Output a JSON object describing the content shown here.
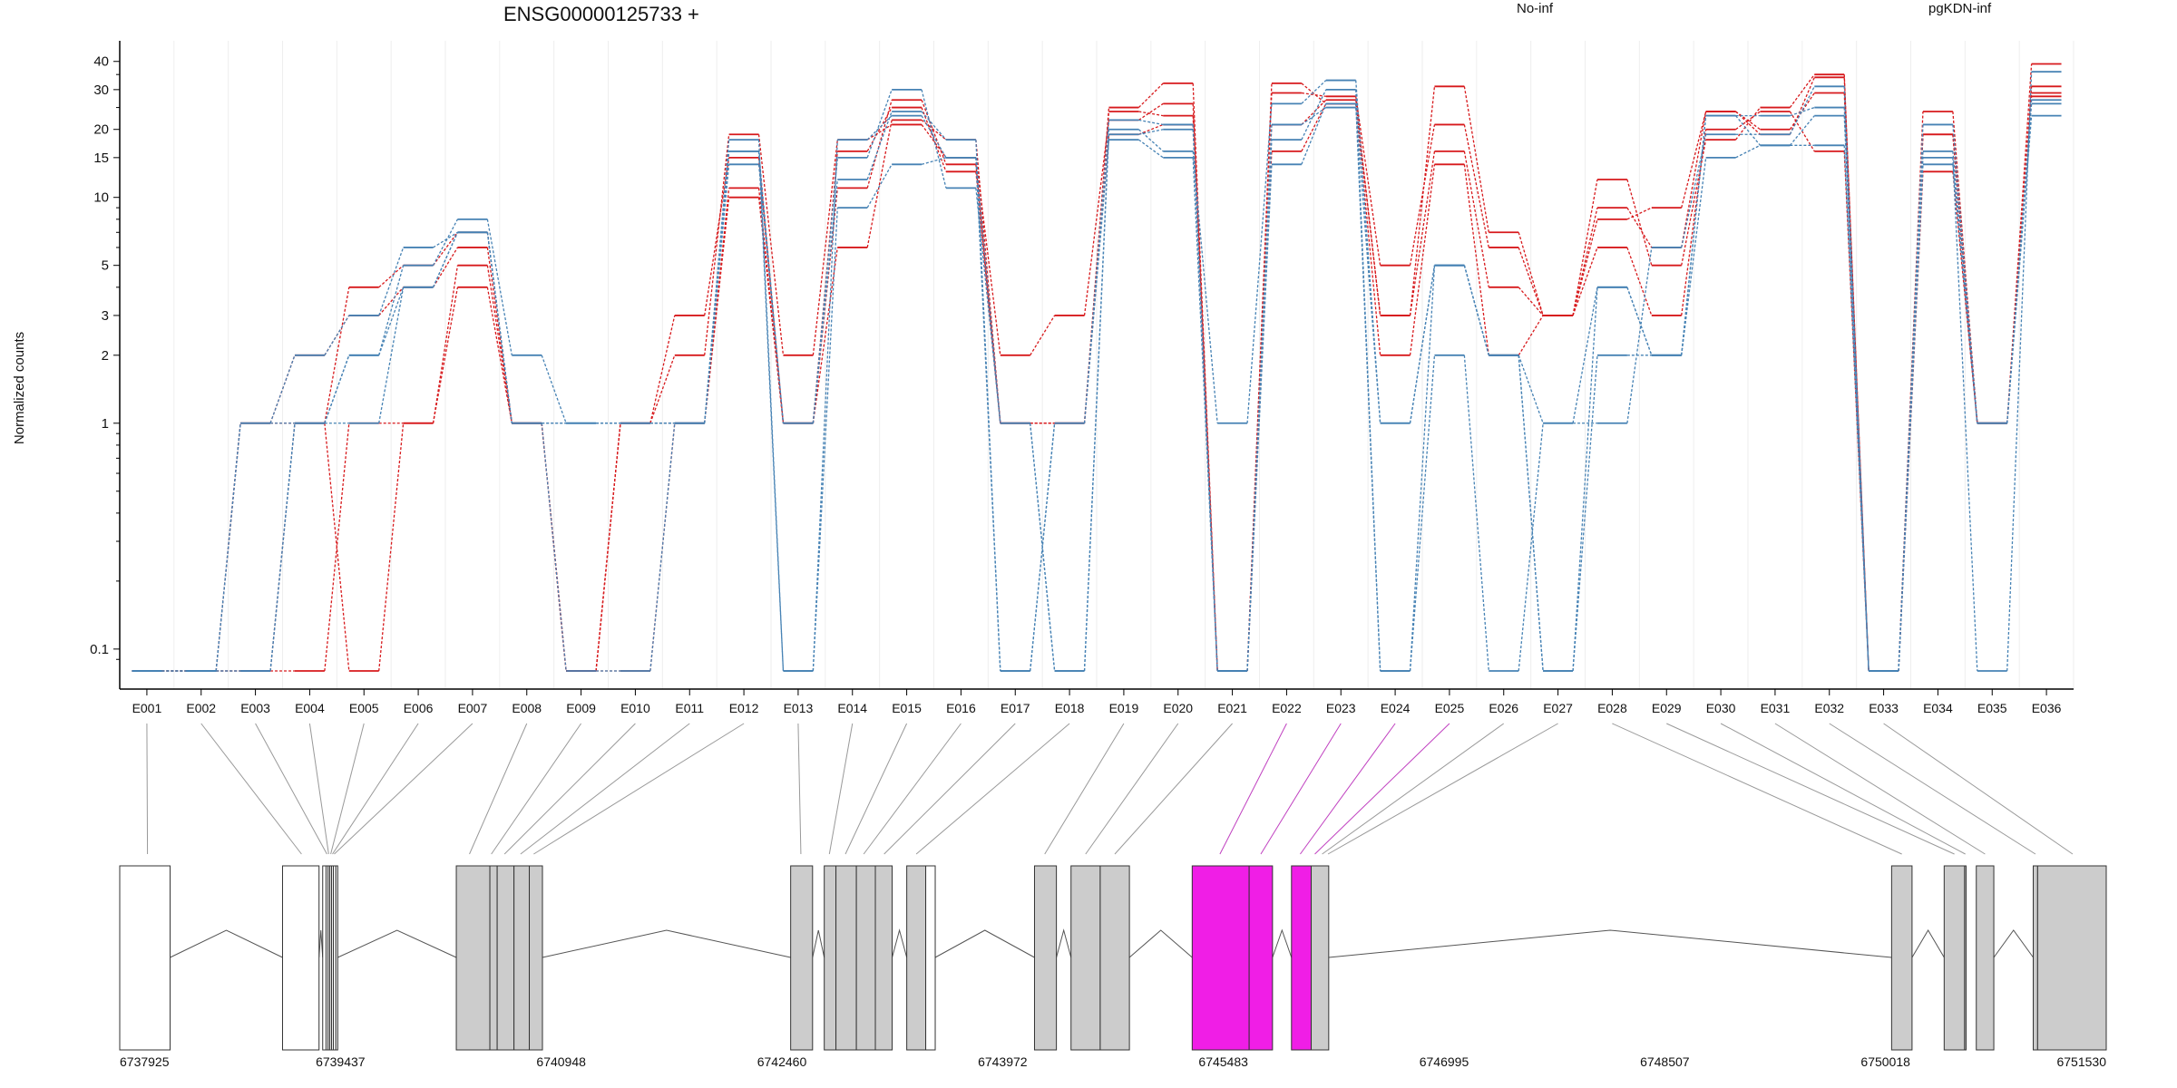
{
  "chart_data": {
    "type": "line",
    "title": "ENSG00000125733 +",
    "ylabel": "Normalized counts",
    "xlabel": "",
    "y_scale": "log",
    "ylim": [
      0.08,
      45
    ],
    "y_ticks": [
      0.1,
      1,
      2,
      3,
      5,
      10,
      15,
      20,
      30,
      40
    ],
    "y_tick_labels": [
      "0.1",
      "1",
      "2",
      "3",
      "5",
      "10",
      "15",
      "20",
      "30",
      "40"
    ],
    "grid": "vertical",
    "legend": [
      {
        "label": "No-inf",
        "color": "#d7191c",
        "placement": "top-center-right"
      },
      {
        "label": "pgKDN-inf",
        "color": "#4682b4",
        "placement": "top-right"
      }
    ],
    "categories": [
      "E001",
      "E002",
      "E003",
      "E004",
      "E005",
      "E006",
      "E007",
      "E008",
      "E009",
      "E010",
      "E011",
      "E012",
      "E013",
      "E014",
      "E015",
      "E016",
      "E017",
      "E018",
      "E019",
      "E020",
      "E021",
      "E022",
      "E023",
      "E024",
      "E025",
      "E026",
      "E027",
      "E028",
      "E029",
      "E030",
      "E031",
      "E032",
      "E033",
      "E034",
      "E035",
      "E036"
    ],
    "zero_value": 0.08,
    "series": [
      {
        "group": "No-inf",
        "color": "#d7191c",
        "values": [
          0.08,
          0.08,
          1,
          1,
          0.08,
          1,
          4,
          1,
          0.08,
          1,
          1,
          11,
          1,
          6,
          22,
          18,
          1,
          1,
          19,
          21,
          0.08,
          21,
          27,
          3,
          16,
          4,
          3,
          9,
          6,
          24,
          20,
          29,
          0.08,
          19,
          1,
          28
        ]
      },
      {
        "group": "No-inf",
        "color": "#d7191c",
        "values": [
          0.08,
          0.08,
          1,
          2,
          3,
          4,
          6,
          1,
          0.08,
          1,
          2,
          19,
          2,
          18,
          21,
          15,
          2,
          3,
          22,
          26,
          0.08,
          29,
          28,
          5,
          21,
          6,
          3,
          12,
          5,
          18,
          25,
          35,
          0.08,
          24,
          1,
          31
        ]
      },
      {
        "group": "No-inf",
        "color": "#d7191c",
        "values": [
          0.08,
          0.08,
          0.08,
          1,
          4,
          5,
          7,
          1,
          0.08,
          1,
          3,
          15,
          1,
          11,
          27,
          14,
          1,
          1,
          25,
          32,
          0.08,
          32,
          26,
          3,
          31,
          7,
          3,
          8,
          9,
          24,
          19,
          34,
          0.08,
          19,
          1,
          39
        ]
      },
      {
        "group": "No-inf",
        "color": "#d7191c",
        "values": [
          0.08,
          0.08,
          0.08,
          0.08,
          1,
          1,
          5,
          1,
          0.08,
          0.08,
          1,
          10,
          1,
          16,
          25,
          13,
          1,
          1,
          24,
          23,
          0.08,
          16,
          26,
          2,
          14,
          2,
          3,
          6,
          3,
          20,
          24,
          16,
          0.08,
          13,
          1,
          29
        ]
      },
      {
        "group": "pgKDN-inf",
        "color": "#4682b4",
        "values": [
          0.08,
          0.08,
          1,
          1,
          1,
          4,
          7,
          1,
          1,
          1,
          1,
          16,
          1,
          15,
          30,
          11,
          1,
          0.08,
          20,
          16,
          1,
          26,
          33,
          1,
          5,
          2,
          1,
          4,
          2,
          23,
          17,
          23,
          0.08,
          21,
          1,
          23
        ]
      },
      {
        "group": "pgKDN-inf",
        "color": "#4682b4",
        "values": [
          0.08,
          0.08,
          0.08,
          1,
          2,
          5,
          8,
          2,
          1,
          1,
          1,
          14,
          1,
          12,
          24,
          18,
          0.08,
          1,
          22,
          21,
          0.08,
          18,
          30,
          0.08,
          2,
          0.08,
          1,
          1,
          6,
          19,
          19,
          31,
          0.08,
          14,
          1,
          26
        ]
      },
      {
        "group": "pgKDN-inf",
        "color": "#4682b4",
        "values": [
          0.08,
          0.08,
          1,
          2,
          3,
          6,
          7,
          1,
          0.08,
          0.08,
          1,
          16,
          0.08,
          18,
          23,
          15,
          0.08,
          1,
          18,
          15,
          0.08,
          14,
          26,
          0.08,
          5,
          2,
          0.08,
          4,
          2,
          15,
          17,
          17,
          0.08,
          16,
          1,
          27
        ]
      },
      {
        "group": "pgKDN-inf",
        "color": "#4682b4",
        "values": [
          0.08,
          0.08,
          0.08,
          1,
          2,
          4,
          7,
          1,
          1,
          1,
          1,
          18,
          0.08,
          9,
          14,
          15,
          1,
          0.08,
          19,
          20,
          0.08,
          21,
          25,
          1,
          5,
          2,
          0.08,
          2,
          2,
          23,
          23,
          25,
          0.08,
          15,
          0.08,
          36
        ]
      }
    ],
    "gene_model": {
      "coord_labels": [
        "6737925",
        "6739437",
        "6740948",
        "6742460",
        "6743972",
        "6745483",
        "6746995",
        "6748507",
        "6750018",
        "6751530"
      ],
      "coord_range": [
        6737925,
        6751530
      ],
      "exon_fill": "#cccccc",
      "highlight_fill": "#f01ee6",
      "exons": [
        {
          "s": 6737925,
          "e": 6738270,
          "fill": "white"
        },
        {
          "s": 6739040,
          "e": 6739290,
          "fill": "white"
        },
        {
          "s": 6739315,
          "e": 6739338,
          "fill": "white"
        },
        {
          "s": 6739338,
          "e": 6739352,
          "fill": "white"
        },
        {
          "s": 6739352,
          "e": 6739364,
          "fill": "white"
        },
        {
          "s": 6739364,
          "e": 6739376,
          "fill": "white"
        },
        {
          "s": 6739376,
          "e": 6739388,
          "fill": "white"
        },
        {
          "s": 6739388,
          "e": 6739405,
          "fill": "white"
        },
        {
          "s": 6739405,
          "e": 6739418,
          "fill": "white"
        },
        {
          "s": 6740230,
          "e": 6740460,
          "fill": "gray"
        },
        {
          "s": 6740460,
          "e": 6740510,
          "fill": "gray"
        },
        {
          "s": 6740510,
          "e": 6740625,
          "fill": "gray"
        },
        {
          "s": 6740625,
          "e": 6740730,
          "fill": "gray"
        },
        {
          "s": 6740730,
          "e": 6740820,
          "fill": "gray"
        },
        {
          "s": 6742520,
          "e": 6742670,
          "fill": "gray"
        },
        {
          "s": 6742750,
          "e": 6742830,
          "fill": "gray"
        },
        {
          "s": 6742830,
          "e": 6742970,
          "fill": "gray"
        },
        {
          "s": 6742970,
          "e": 6743100,
          "fill": "gray"
        },
        {
          "s": 6743100,
          "e": 6743215,
          "fill": "gray"
        },
        {
          "s": 6743315,
          "e": 6743445,
          "fill": "gray"
        },
        {
          "s": 6743445,
          "e": 6743510,
          "fill": "white"
        },
        {
          "s": 6744190,
          "e": 6744340,
          "fill": "gray"
        },
        {
          "s": 6744440,
          "e": 6744640,
          "fill": "gray"
        },
        {
          "s": 6744640,
          "e": 6744840,
          "fill": "gray"
        },
        {
          "s": 6745270,
          "e": 6745660,
          "fill": "highlight"
        },
        {
          "s": 6745660,
          "e": 6745820,
          "fill": "highlight"
        },
        {
          "s": 6745950,
          "e": 6746085,
          "fill": "highlight"
        },
        {
          "s": 6746085,
          "e": 6746205,
          "fill": "gray"
        },
        {
          "s": 6750060,
          "e": 6750200,
          "fill": "gray"
        },
        {
          "s": 6750420,
          "e": 6750560,
          "fill": "gray"
        },
        {
          "s": 6750560,
          "e": 6750570,
          "fill": "gray"
        },
        {
          "s": 6750640,
          "e": 6750760,
          "fill": "gray"
        },
        {
          "s": 6751030,
          "e": 6751060,
          "fill": "gray"
        },
        {
          "s": 6751060,
          "e": 6751530,
          "fill": "gray"
        }
      ],
      "introns": [
        [
          6738270,
          6739040
        ],
        [
          6739290,
          6739315
        ],
        [
          6739418,
          6740230
        ],
        [
          6740820,
          6742520
        ],
        [
          6742670,
          6742750
        ],
        [
          6743215,
          6743315
        ],
        [
          6743510,
          6744190
        ],
        [
          6744340,
          6744440
        ],
        [
          6744840,
          6745270
        ],
        [
          6745820,
          6745950
        ],
        [
          6746205,
          6750060
        ],
        [
          6750200,
          6750420
        ],
        [
          6750760,
          6751030
        ]
      ],
      "exon_links": [
        6738115,
        6739170,
        6739344,
        6739356,
        6739370,
        6739382,
        6739394,
        6740320,
        6740470,
        6740560,
        6740670,
        6740760,
        6742590,
        6742785,
        6742895,
        6743020,
        6743160,
        6743380,
        6744260,
        6744540,
        6744740,
        6745460,
        6745740,
        6746010,
        6746110,
        6746160,
        6746200,
        6750130,
        6750490,
        6750565,
        6750700,
        6751045,
        6751300
      ],
      "highlight_links": [
        21,
        22,
        23,
        24
      ]
    }
  }
}
